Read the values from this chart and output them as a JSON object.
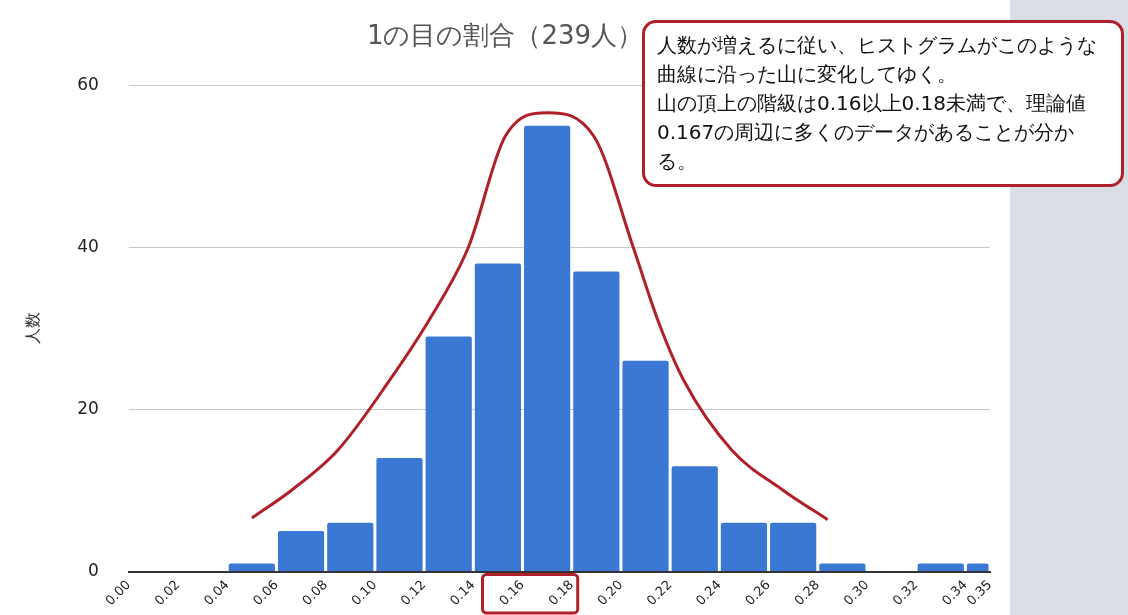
{
  "chart_data": {
    "type": "histogram",
    "title": "1の目の割合（239人）",
    "ylabel": "人数",
    "bins": [
      0.04,
      0.06,
      0.08,
      0.1,
      0.12,
      0.14,
      0.16,
      0.18,
      0.2,
      0.22,
      0.24,
      0.26,
      0.28,
      0.3,
      0.32,
      0.34,
      0.35
    ],
    "values": [
      1,
      5,
      6,
      14,
      29,
      38,
      55,
      37,
      26,
      13,
      6,
      6,
      1,
      0,
      1,
      1
    ],
    "color": "#3a78d4",
    "series": [
      {
        "type": "line",
        "color": "#b0202a",
        "x": [
          0.05,
          0.066,
          0.085,
          0.106,
          0.122,
          0.138,
          0.153,
          0.17,
          0.189,
          0.205,
          0.215,
          0.2255,
          0.245,
          0.266,
          0.284
        ],
        "values": [
          6.6,
          10,
          15,
          23.6,
          31,
          40,
          53.7,
          56.6,
          53.7,
          40,
          31,
          23.6,
          15,
          10,
          6.4
        ]
      }
    ],
    "xticks": [
      {
        "value": 0,
        "label": "0.00"
      },
      {
        "value": 0.02,
        "label": "0.02"
      },
      {
        "value": 0.04,
        "label": "0.04"
      },
      {
        "value": 0.06,
        "label": "0.06"
      },
      {
        "value": 0.08,
        "label": "0.08"
      },
      {
        "value": 0.1,
        "label": "0.10"
      },
      {
        "value": 0.12,
        "label": "0.12"
      },
      {
        "value": 0.14,
        "label": "0.14"
      },
      {
        "value": 0.16,
        "label": "0.16"
      },
      {
        "value": 0.18,
        "label": "0.18"
      },
      {
        "value": 0.2,
        "label": "0.20"
      },
      {
        "value": 0.22,
        "label": "0.22"
      },
      {
        "value": 0.24,
        "label": "0.24"
      },
      {
        "value": 0.26,
        "label": "0.26"
      },
      {
        "value": 0.28,
        "label": "0.28"
      },
      {
        "value": 0.3,
        "label": "0.30"
      },
      {
        "value": 0.32,
        "label": "0.32"
      },
      {
        "value": 0.34,
        "label": "0.34"
      },
      {
        "value": 0.35,
        "label": "0.35"
      }
    ],
    "xlim": [
      0,
      0.35
    ],
    "ylim": [
      0,
      60
    ],
    "yticks": [
      0,
      20,
      40,
      60
    ],
    "grid": "y",
    "legend": false,
    "annotations": [
      "人数が増えるに従い、ヒストグラムがこのような曲線に沿った山に変化してゆく。",
      "山の頂上の階級は0.16以上0.18未満で、理論値0.167の周辺に多くのデータがあることが分かる。"
    ]
  }
}
